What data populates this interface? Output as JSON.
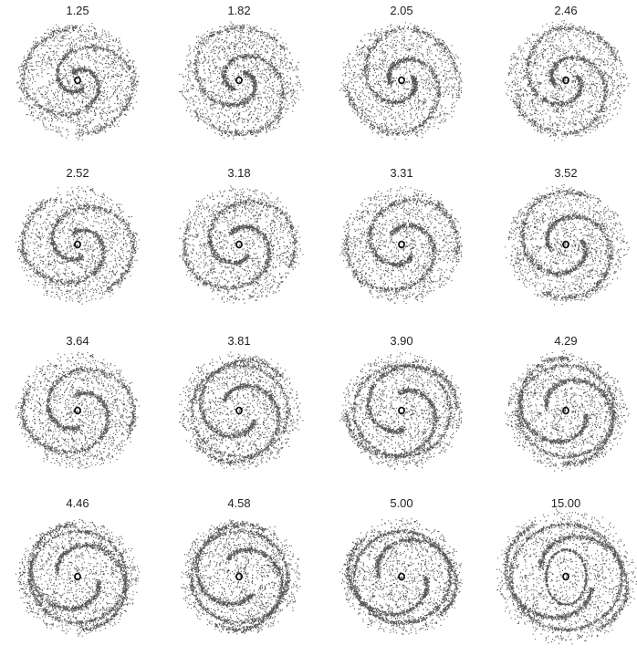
{
  "panels": [
    {
      "label": "1.25"
    },
    {
      "label": "1.82"
    },
    {
      "label": "2.05"
    },
    {
      "label": "2.46"
    },
    {
      "label": "2.52"
    },
    {
      "label": "3.18"
    },
    {
      "label": "3.31"
    },
    {
      "label": "3.52"
    },
    {
      "label": "3.64"
    },
    {
      "label": "3.81"
    },
    {
      "label": "3.90"
    },
    {
      "label": "4.29"
    },
    {
      "label": "4.46"
    },
    {
      "label": "4.58"
    },
    {
      "label": "5.00"
    },
    {
      "label": "15.00"
    }
  ]
}
